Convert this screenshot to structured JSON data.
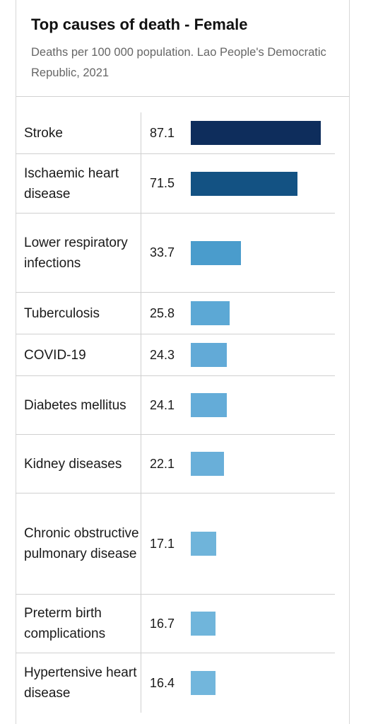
{
  "header": {
    "title": "Top causes of death - Female",
    "subtitle": "Deaths per 100 000 population. Lao People's Democratic Republic, 2021"
  },
  "chart_data": {
    "type": "bar",
    "orientation": "horizontal",
    "title": "Top causes of death - Female",
    "subtitle": "Deaths per 100 000 population. Lao People's Democratic Republic, 2021",
    "categories": [
      "Stroke",
      "Ischaemic heart disease",
      "Lower respiratory infections",
      "Tuberculosis",
      "COVID-19",
      "Diabetes mellitus",
      "Kidney diseases",
      "Chronic obstructive pulmonary disease",
      "Preterm birth complications",
      "Hypertensive heart disease"
    ],
    "value_labels": [
      "87.1",
      "71.5",
      "33.7",
      "25.8",
      "24.3",
      "24.1",
      "22.1",
      "17.1",
      "16.7",
      "16.4"
    ],
    "values": [
      87.1,
      71.5,
      33.7,
      25.8,
      24.3,
      24.1,
      22.1,
      17.1,
      16.7,
      16.4
    ],
    "colors": [
      "#0e2d5c",
      "#135283",
      "#4a9ccc",
      "#5ca8d5",
      "#62aad7",
      "#64acd8",
      "#69afd9",
      "#6fb4da",
      "#70b5db",
      "#72b6dc"
    ],
    "xlim": [
      0,
      87.1
    ],
    "grid": false,
    "legend": "none"
  }
}
